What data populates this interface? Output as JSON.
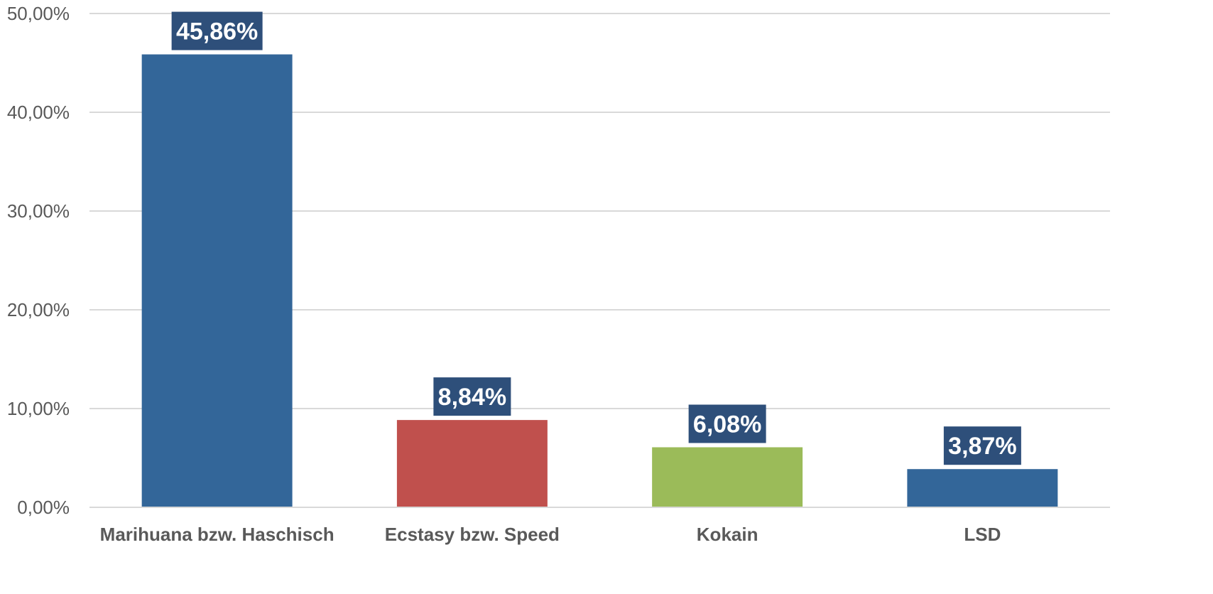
{
  "chart_data": {
    "type": "bar",
    "categories": [
      "Marihuana bzw. Haschisch",
      "Ecstasy bzw. Speed",
      "Kokain",
      "LSD"
    ],
    "values": [
      45.86,
      8.84,
      6.08,
      3.87
    ],
    "value_labels": [
      "45,86%",
      "8,84%",
      "6,08%",
      "3,87%"
    ],
    "bar_colors": [
      "#336699",
      "#c0504d",
      "#9bbb59",
      "#336699"
    ],
    "data_label_box_color": "#2e4f7a",
    "title": "",
    "xlabel": "",
    "ylabel": "",
    "ylim": [
      0,
      50
    ],
    "yticks": [
      0,
      10,
      20,
      30,
      40,
      50
    ],
    "ytick_labels": [
      "0,00%",
      "10,00%",
      "20,00%",
      "30,00%",
      "40,00%",
      "50,00%"
    ],
    "grid": true,
    "gridline_color": "#d9d9d9",
    "legend": "none"
  }
}
